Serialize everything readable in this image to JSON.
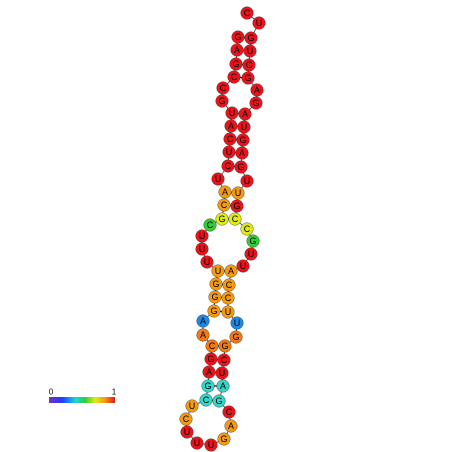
{
  "scale": {
    "min_label": "0",
    "max_label": "1"
  },
  "nodes": [
    {
      "label": "C",
      "color": "#e8141b"
    },
    {
      "label": "U",
      "color": "#e8141b"
    },
    {
      "label": "G",
      "color": "#e8141b"
    },
    {
      "label": "U",
      "color": "#e8141b"
    },
    {
      "label": "C",
      "color": "#e8141b"
    },
    {
      "label": "G",
      "color": "#e8141b"
    },
    {
      "label": "A",
      "color": "#e8141b"
    },
    {
      "label": "G",
      "color": "#e8141b"
    },
    {
      "label": "A",
      "color": "#e8141b"
    },
    {
      "label": "U",
      "color": "#e8141b"
    },
    {
      "label": "G",
      "color": "#e8141b"
    },
    {
      "label": "A",
      "color": "#e8141b"
    },
    {
      "label": "G",
      "color": "#e8141b"
    },
    {
      "label": "U",
      "color": "#e8141b"
    },
    {
      "label": "U",
      "color": "#f39a14"
    },
    {
      "label": "G",
      "color": "#e8141b"
    },
    {
      "label": "C",
      "color": "#e0ea1a"
    },
    {
      "label": "C",
      "color": "#e0ea1a"
    },
    {
      "label": "G",
      "color": "#33cc33"
    },
    {
      "label": "U",
      "color": "#e8141b"
    },
    {
      "label": "U",
      "color": "#e8141b"
    },
    {
      "label": "A",
      "color": "#f39a14"
    },
    {
      "label": "C",
      "color": "#f39a14"
    },
    {
      "label": "C",
      "color": "#f39a14"
    },
    {
      "label": "U",
      "color": "#f39a14"
    },
    {
      "label": "U",
      "color": "#1e88e5"
    },
    {
      "label": "G",
      "color": "#f07a14"
    },
    {
      "label": "G",
      "color": "#f07a14"
    },
    {
      "label": "C",
      "color": "#e8141b"
    },
    {
      "label": "U",
      "color": "#e8141b"
    },
    {
      "label": "A",
      "color": "#33d6c8"
    },
    {
      "label": "G",
      "color": "#33d6c8"
    },
    {
      "label": "C",
      "color": "#e8141b"
    },
    {
      "label": "A",
      "color": "#f39a14"
    },
    {
      "label": "G",
      "color": "#f39a14"
    },
    {
      "label": "U",
      "color": "#e8141b"
    },
    {
      "label": "U",
      "color": "#e8141b"
    },
    {
      "label": "U",
      "color": "#e8141b"
    },
    {
      "label": "C",
      "color": "#f39a14"
    },
    {
      "label": "U",
      "color": "#f39a14"
    },
    {
      "label": "C",
      "color": "#33d6c8"
    },
    {
      "label": "G",
      "color": "#33d6c8"
    },
    {
      "label": "A",
      "color": "#e8141b"
    },
    {
      "label": "G",
      "color": "#e8141b"
    },
    {
      "label": "C",
      "color": "#f07a14"
    },
    {
      "label": "A",
      "color": "#f07a14"
    },
    {
      "label": "A",
      "color": "#1e88e5"
    },
    {
      "label": "G",
      "color": "#f39a14"
    },
    {
      "label": "G",
      "color": "#f39a14"
    },
    {
      "label": "G",
      "color": "#f39a14"
    },
    {
      "label": "U",
      "color": "#f39a14"
    },
    {
      "label": "U",
      "color": "#e8141b"
    },
    {
      "label": "U",
      "color": "#e8141b"
    },
    {
      "label": "U",
      "color": "#e8141b"
    },
    {
      "label": "C",
      "color": "#33cc33"
    },
    {
      "label": "G",
      "color": "#e0ea1a"
    },
    {
      "label": "C",
      "color": "#f39a14"
    },
    {
      "label": "A",
      "color": "#f39a14"
    },
    {
      "label": "U",
      "color": "#e8141b"
    },
    {
      "label": "C",
      "color": "#e8141b"
    },
    {
      "label": "U",
      "color": "#e8141b"
    },
    {
      "label": "C",
      "color": "#e8141b"
    },
    {
      "label": "A",
      "color": "#e8141b"
    },
    {
      "label": "U",
      "color": "#e8141b"
    },
    {
      "label": "G",
      "color": "#e8141b"
    },
    {
      "label": "C",
      "color": "#e8141b"
    },
    {
      "label": "C",
      "color": "#e8141b"
    },
    {
      "label": "G",
      "color": "#e8141b"
    },
    {
      "label": "A",
      "color": "#e8141b"
    },
    {
      "label": "G",
      "color": "#e8141b"
    }
  ]
}
